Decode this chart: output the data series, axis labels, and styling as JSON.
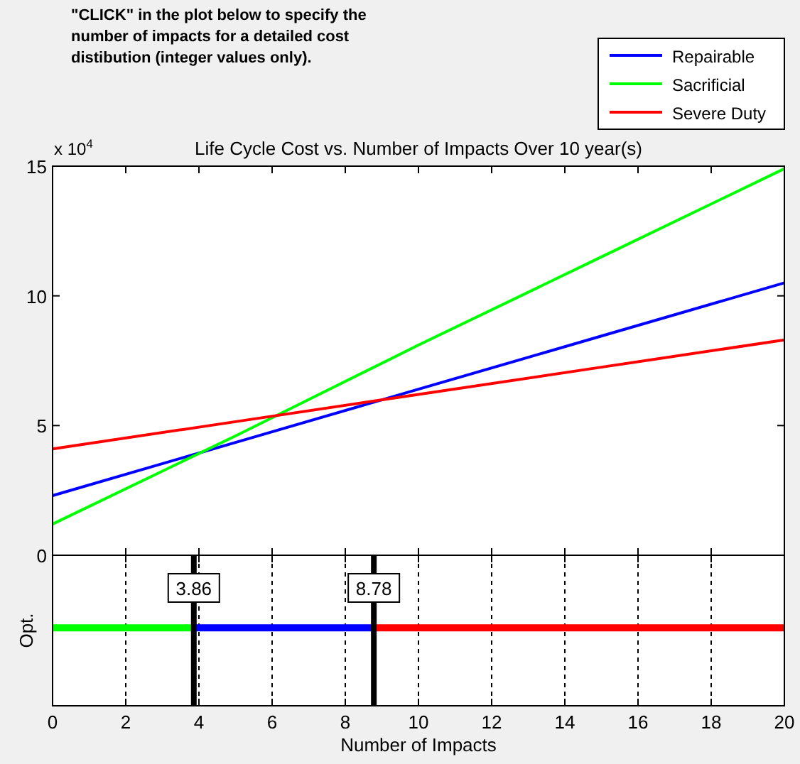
{
  "chart_data": [
    {
      "type": "line",
      "title": "Life Cycle Cost vs. Number of Impacts Over 10 year(s)",
      "annotations": [
        "\"CLICK\" in the plot below to specify the number of impacts for a detailed cost distibution (integer values only).",
        "x 10$^{4}$"
      ],
      "xlim": [
        0,
        20
      ],
      "xticks": [
        {
          "value": 0,
          "label": null
        },
        {
          "value": 2,
          "label": null
        },
        {
          "value": 4,
          "label": null
        },
        {
          "value": 6,
          "label": null
        },
        {
          "value": 8,
          "label": null
        },
        {
          "value": 10,
          "label": null
        },
        {
          "value": 12,
          "label": null
        },
        {
          "value": 14,
          "label": null
        },
        {
          "value": 16,
          "label": null
        },
        {
          "value": 18,
          "label": null
        },
        {
          "value": 20,
          "label": null
        }
      ],
      "ylim": [
        0,
        15
      ],
      "yticks": [
        0,
        5,
        10,
        15
      ],
      "tick_labels": "y",
      "legend": "top right",
      "grid": false,
      "series": [
        {
          "name": "Repairable",
          "color": "#0000ff",
          "x": [
            0,
            5,
            10,
            15,
            20
          ],
          "values": [
            2.3,
            4.35,
            6.4,
            8.45,
            10.5
          ]
        },
        {
          "name": "Sacrificial",
          "color": "#00ff00",
          "x": [
            0,
            5,
            10,
            15,
            20
          ],
          "values": [
            1.2,
            4.6,
            8.1,
            11.5,
            14.9
          ]
        },
        {
          "name": "Severe Duty",
          "color": "#ff0000",
          "x": [
            0,
            5,
            10,
            15,
            20
          ],
          "values": [
            4.1,
            5.15,
            6.2,
            7.25,
            8.3
          ]
        }
      ]
    },
    {
      "type": "bar",
      "orientation": "horizontal",
      "stacked": true,
      "categories": [
        null
      ],
      "xlabel": "Number of Impacts",
      "ylabel": "Opt.",
      "xlim": [
        0,
        20
      ],
      "xticks": [
        0,
        2,
        4,
        6,
        8,
        10,
        12,
        14,
        16,
        18,
        20
      ],
      "grid": "x",
      "legend": false,
      "ref_lines": [
        {
          "axis": "x",
          "value": 3.86,
          "label": "3.86",
          "color": "#000000"
        },
        {
          "axis": "x",
          "value": 8.78,
          "label": "8.78",
          "color": "#000000"
        }
      ],
      "series": [
        {
          "color": "#00ff00",
          "values": [
            3.86
          ]
        },
        {
          "color": "#0000ff",
          "values": [
            4.92
          ]
        },
        {
          "color": "#ff0000",
          "values": [
            11.22
          ]
        }
      ]
    }
  ]
}
